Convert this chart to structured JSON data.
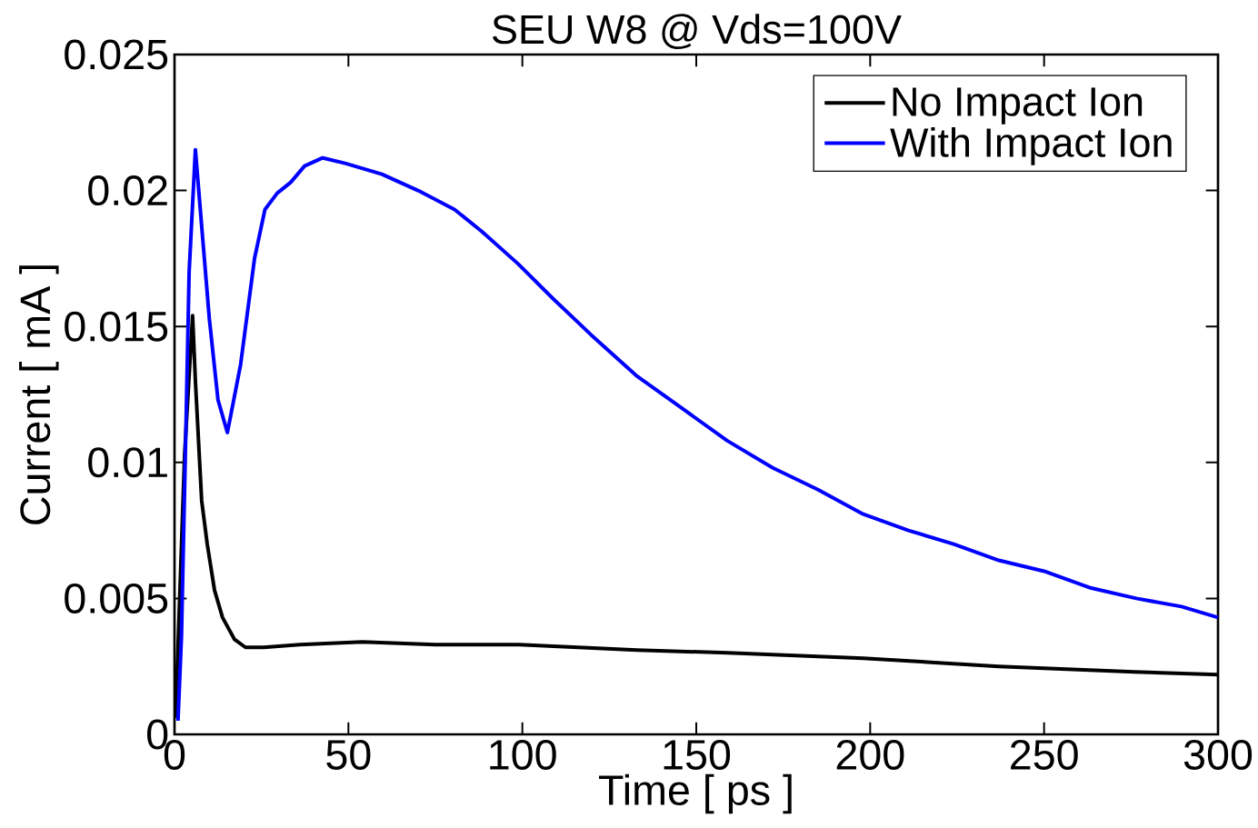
{
  "chart_data": {
    "type": "line",
    "title": "SEU W8 @ Vds=100V",
    "xlabel": "Time [ ps ]",
    "ylabel": "Current [ mA ]",
    "xlim": [
      0,
      300
    ],
    "ylim": [
      0,
      0.025
    ],
    "xticks": [
      0,
      50,
      100,
      150,
      200,
      250,
      300
    ],
    "yticks": [
      0,
      0.005,
      0.01,
      0.015,
      0.02,
      0.025
    ],
    "grid": false,
    "legend": "top right",
    "marker": "none",
    "line_style": "solid",
    "series": [
      {
        "name": "No Impact Ion",
        "color": "#000000",
        "x": [
          0.3,
          2.9,
          5.2,
          6,
          7.8,
          9.4,
          11.5,
          13.8,
          17.2,
          20.4,
          25.6,
          36,
          54,
          75,
          99,
          133,
          159,
          198,
          237,
          276,
          300
        ],
        "values": [
          0.0006,
          0.0103,
          0.0154,
          0.013,
          0.0086,
          0.007,
          0.0053,
          0.0043,
          0.0035,
          0.0032,
          0.0032,
          0.0033,
          0.0034,
          0.0033,
          0.0033,
          0.0031,
          0.003,
          0.0028,
          0.0025,
          0.0023,
          0.0022
        ]
      },
      {
        "name": "With Impact Ion",
        "color": "#0000ff",
        "x": [
          1,
          2,
          3.4,
          4.2,
          6,
          7.8,
          10,
          12.5,
          15.2,
          19,
          23,
          26,
          29.5,
          33.4,
          37.4,
          42.6,
          49,
          59.6,
          70,
          80.5,
          88.3,
          98.8,
          109,
          119.7,
          132.7,
          145.8,
          158.9,
          172,
          185,
          198,
          211,
          224,
          237,
          250,
          263,
          276.5,
          289.5,
          300
        ],
        "values": [
          0.0005,
          0.0036,
          0.012,
          0.017,
          0.0215,
          0.0187,
          0.0153,
          0.0123,
          0.0111,
          0.0136,
          0.0175,
          0.0193,
          0.0199,
          0.0203,
          0.0209,
          0.0212,
          0.021,
          0.0206,
          0.02,
          0.0193,
          0.0185,
          0.0173,
          0.016,
          0.0147,
          0.0132,
          0.012,
          0.0108,
          0.0098,
          0.009,
          0.0081,
          0.0075,
          0.007,
          0.0064,
          0.006,
          0.0054,
          0.005,
          0.0047,
          0.0043
        ]
      }
    ]
  }
}
